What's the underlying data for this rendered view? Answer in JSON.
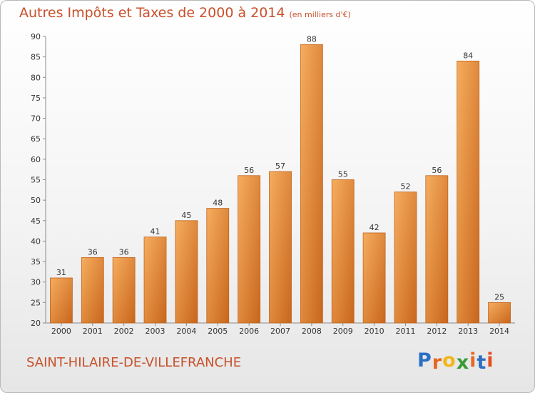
{
  "title": "Autres Impôts et Taxes de 2000 à 2014",
  "subtitle": "(en milliers d'€)",
  "commune": "SAINT-HILAIRE-DE-VILLEFRANCHE",
  "logo": {
    "letters": [
      "P",
      "r",
      "o",
      "x",
      "i",
      "t",
      "i"
    ],
    "colors": [
      "#2c6fc4",
      "#e8671e",
      "#f2b61b",
      "#3a9b35",
      "#e8671e",
      "#2c6fc4",
      "#e84b1e"
    ]
  },
  "colors": {
    "bar": "#f0923c",
    "bar_light": "#f6ad5e",
    "bar_dark": "#c8661c",
    "text": "#c8502a"
  },
  "chart_data": {
    "type": "bar",
    "categories": [
      "2000",
      "2001",
      "2002",
      "2003",
      "2004",
      "2005",
      "2006",
      "2007",
      "2008",
      "2009",
      "2010",
      "2011",
      "2012",
      "2013",
      "2014"
    ],
    "values": [
      31,
      36,
      36,
      41,
      45,
      48,
      56,
      57,
      88,
      55,
      42,
      52,
      56,
      84,
      25
    ],
    "ylim": [
      20,
      90
    ],
    "yticks": [
      20,
      25,
      30,
      35,
      40,
      45,
      50,
      55,
      60,
      65,
      70,
      75,
      80,
      85,
      90
    ],
    "grid": false,
    "data_labels": true
  }
}
